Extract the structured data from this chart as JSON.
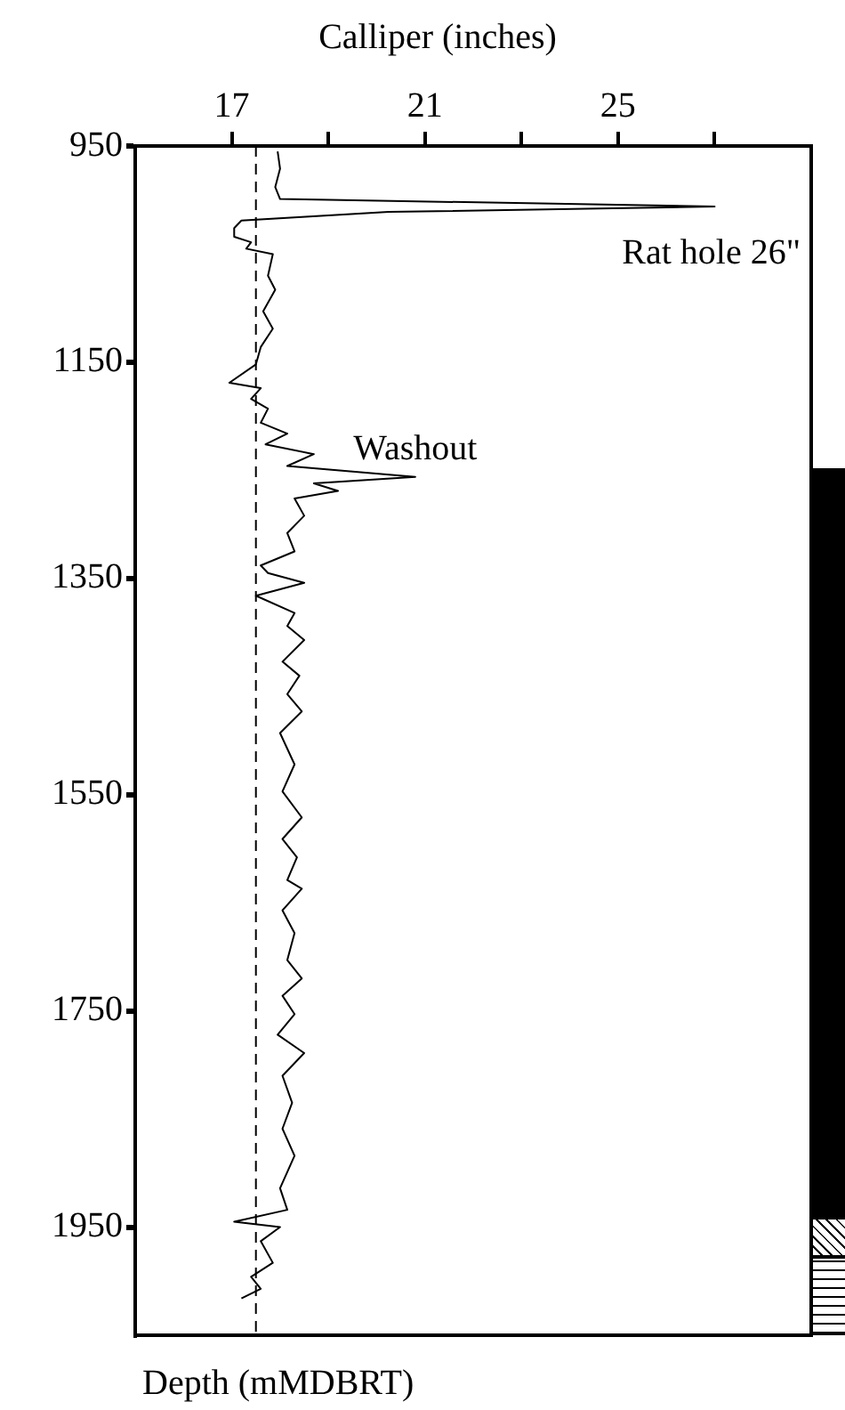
{
  "chart_data": {
    "type": "line",
    "xlabel": "Calliper (inches)",
    "xlim": [
      15,
      29
    ],
    "xticks": [
      17,
      {
        "value": 19,
        "label": null
      },
      21,
      {
        "value": 23,
        "label": null
      },
      25,
      {
        "value": 27,
        "label": null
      }
    ],
    "ylim": [
      2050,
      950
    ],
    "yticks": [
      950,
      1150,
      1350,
      1550,
      1750,
      1950
    ],
    "series": [
      {
        "color": "#000000",
        "x": [
          17.95,
          18.0,
          17.9,
          18.0,
          27.0,
          20.25,
          17.2,
          17.05,
          17.05,
          17.4,
          17.3,
          17.85,
          17.75,
          17.9,
          17.65,
          17.85,
          17.6,
          17.5,
          16.95,
          17.6,
          17.4,
          17.75,
          17.6,
          18.15,
          17.7,
          18.7,
          18.15,
          20.8,
          18.7,
          19.2,
          18.3,
          18.5,
          18.15,
          18.3,
          17.6,
          17.75,
          18.5,
          17.5,
          18.3,
          18.15,
          18.5,
          18.05,
          18.4,
          18.15,
          18.45,
          18.0,
          18.3,
          18.05,
          18.45,
          18.05,
          18.35,
          18.15,
          18.45,
          18.05,
          18.3,
          18.15,
          18.45,
          18.05,
          18.3,
          17.95,
          18.5,
          18.05,
          18.25,
          18.05,
          18.3,
          18.0,
          18.15,
          17.05,
          18.0,
          17.6,
          17.85,
          17.4,
          17.6,
          17.2
        ],
        "values": [
          955,
          971,
          988,
          999,
          1006,
          1011,
          1019,
          1026,
          1034,
          1039,
          1045,
          1050,
          1070,
          1083,
          1103,
          1119,
          1136,
          1152,
          1169,
          1174,
          1184,
          1193,
          1206,
          1216,
          1226,
          1235,
          1246,
          1256,
          1262,
          1269,
          1276,
          1292,
          1308,
          1325,
          1338,
          1345,
          1354,
          1366,
          1382,
          1394,
          1407,
          1427,
          1440,
          1457,
          1473,
          1493,
          1522,
          1547,
          1571,
          1591,
          1608,
          1629,
          1637,
          1657,
          1678,
          1703,
          1720,
          1736,
          1753,
          1772,
          1789,
          1810,
          1835,
          1859,
          1884,
          1914,
          1934,
          1945,
          1950,
          1963,
          1983,
          1996,
          2007,
          2016
        ]
      }
    ],
    "ref_lines": [
      {
        "axis": "x",
        "value": 17.5,
        "color": "#000000",
        "line_style": "dashed"
      }
    ],
    "annotations": [
      {
        "text": "Rat hole 26\"",
        "x": 27.0,
        "y": 1006
      },
      {
        "text": "Washout",
        "x": 20.8,
        "y": 1256
      },
      "Depth (mMDBRT)"
    ],
    "marker": "none",
    "line_style": "solid",
    "legend": false
  }
}
